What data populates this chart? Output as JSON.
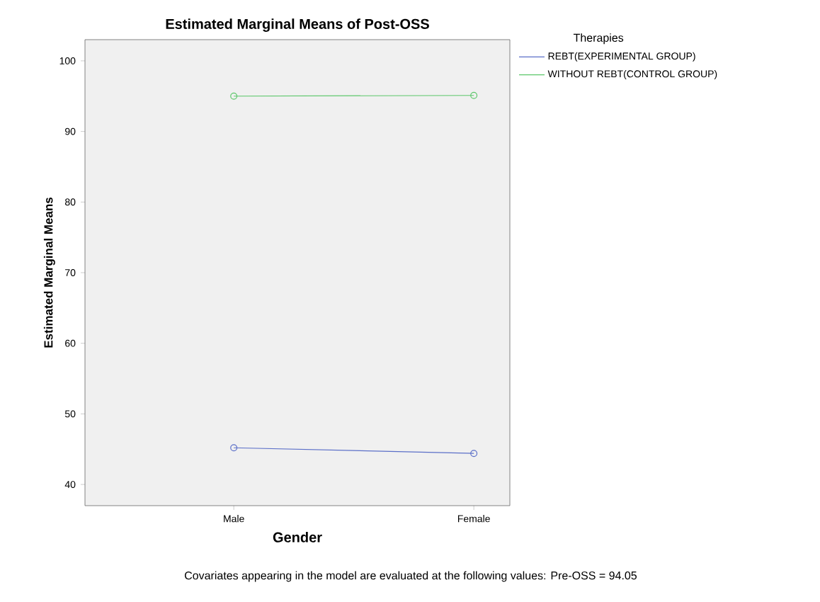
{
  "chart_data": {
    "type": "line",
    "title": "Estimated Marginal Means of Post-OSS",
    "xlabel": "Gender",
    "ylabel": "Estimated Marginal Means",
    "legend_title": "Therapies",
    "annotations": [
      "Covariates appearing in the model are evaluated at the following values: Pre-OSS = 94.05"
    ],
    "categories": [
      "Male",
      "Female"
    ],
    "series": [
      {
        "name": "REBT(EXPERIMENTAL GROUP)",
        "color": "#5b6fc8",
        "values": [
          45.2,
          44.4
        ]
      },
      {
        "name": "WITHOUT REBT(CONTROL GROUP)",
        "color": "#5cc76a",
        "values": [
          95.0,
          95.1
        ]
      }
    ],
    "ylim": [
      37,
      103
    ],
    "yticks": [
      40,
      50,
      60,
      70,
      80,
      90,
      100
    ],
    "marker": "circle",
    "legend": "top right"
  }
}
